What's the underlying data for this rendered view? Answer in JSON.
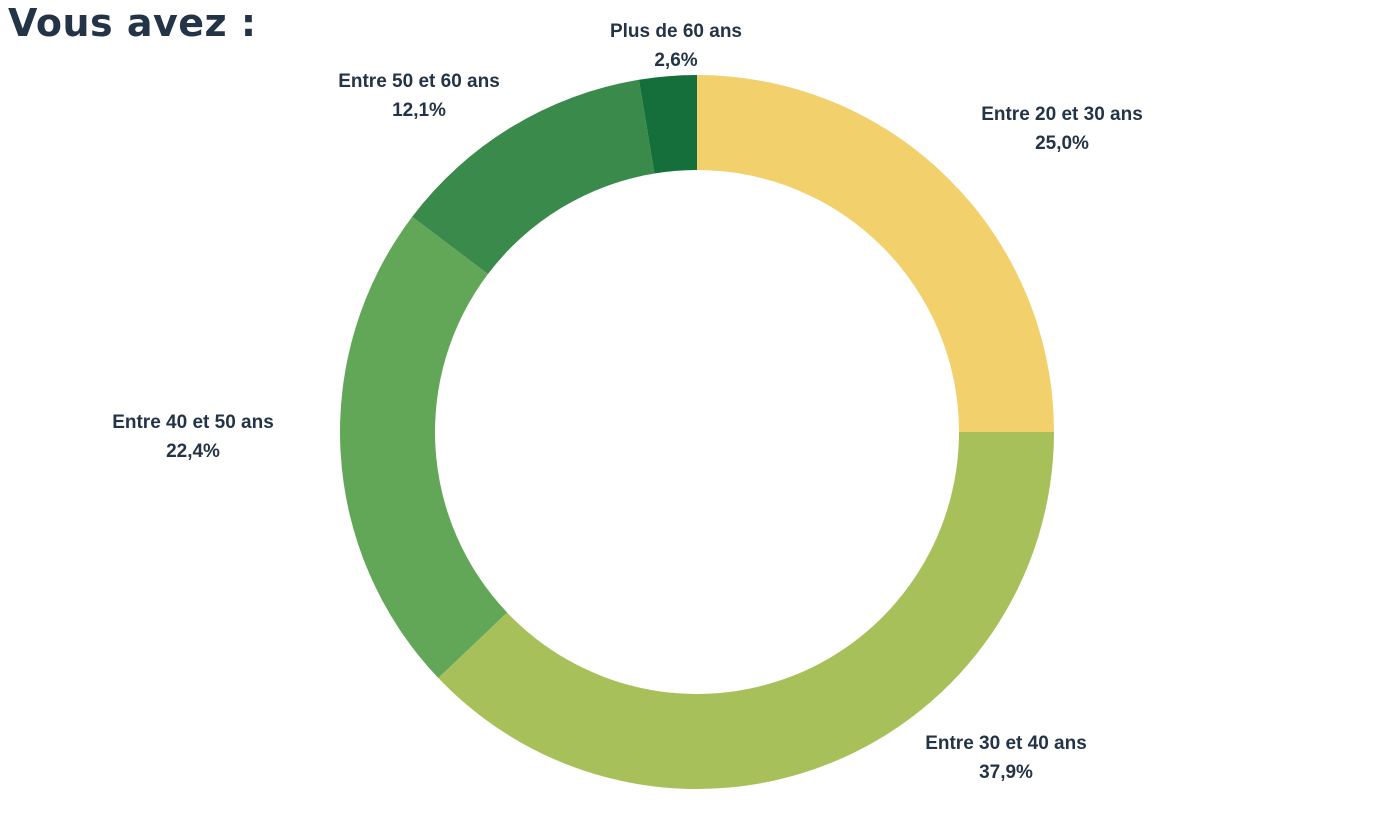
{
  "title": "Vous avez :",
  "chart_data": {
    "type": "pie",
    "variant": "donut",
    "title": "Vous avez :",
    "legend": "none",
    "slices": [
      {
        "label": "Entre 20 et 30 ans",
        "value": 25.0,
        "display": "25,0%",
        "color": "#F2D06B"
      },
      {
        "label": "Entre 30 et 40 ans",
        "value": 37.9,
        "display": "37,9%",
        "color": "#A8C05A"
      },
      {
        "label": "Entre 40 et 50 ans",
        "value": 22.4,
        "display": "22,4%",
        "color": "#62A657"
      },
      {
        "label": "Entre 50 et 60 ans",
        "value": 12.1,
        "display": "12,1%",
        "color": "#3A8A4C"
      },
      {
        "label": "Plus de 60 ans",
        "value": 2.6,
        "display": "2,6%",
        "color": "#156F3A"
      }
    ],
    "start": "top",
    "direction": "clockwise"
  }
}
